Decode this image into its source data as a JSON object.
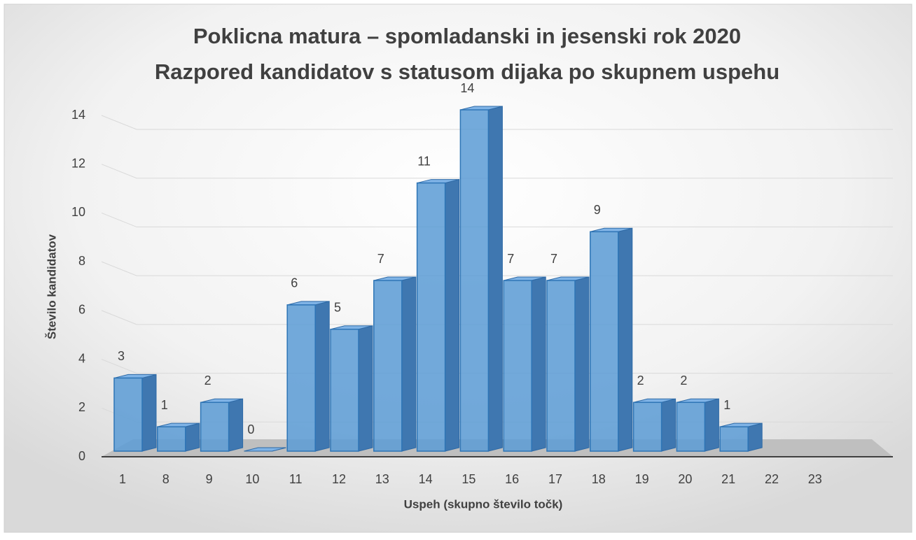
{
  "chart_data": {
    "type": "bar",
    "title": "Poklicna matura – spomladanski in jesenski rok 2020",
    "subtitle": "Razpored kandidatov s statusom dijaka po skupnem uspehu",
    "x_label": "Uspeh (skupno število točk)",
    "y_label": "Število kandidatov",
    "categories": [
      "1",
      "8",
      "9",
      "10",
      "11",
      "12",
      "13",
      "14",
      "15",
      "16",
      "17",
      "18",
      "19",
      "20",
      "21",
      "22",
      "23"
    ],
    "values": [
      3,
      1,
      2,
      0,
      6,
      5,
      7,
      11,
      14,
      7,
      7,
      9,
      2,
      2,
      1,
      null,
      null
    ],
    "color": "#5b9bd5",
    "ylim": [
      0,
      14
    ],
    "yticks": [
      0,
      2,
      4,
      6,
      8,
      10,
      12,
      14
    ],
    "grid": true
  }
}
